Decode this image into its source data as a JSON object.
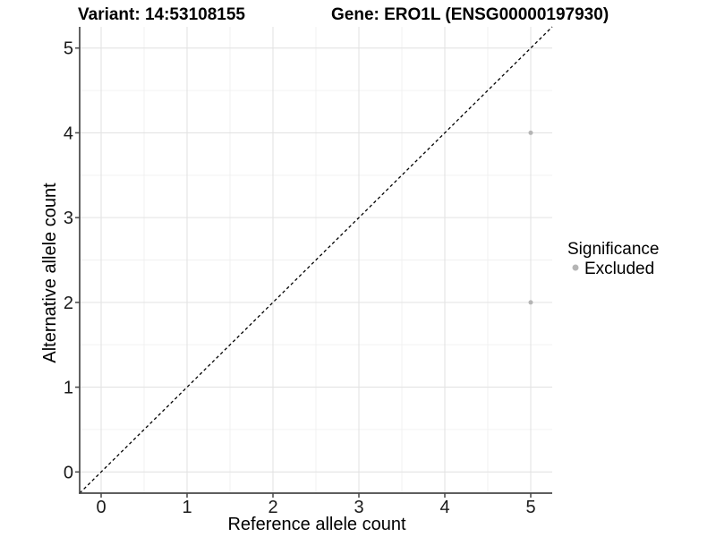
{
  "chart_data": {
    "type": "scatter",
    "titles": [
      "Variant: 14:53108155",
      "Gene: ERO1L (ENSG00000197930)"
    ],
    "xlabel": "Reference allele count",
    "ylabel": "Alternative allele count",
    "xlim": [
      -0.25,
      5.25
    ],
    "ylim": [
      -0.25,
      5.25
    ],
    "x_ticks": [
      0,
      1,
      2,
      3,
      4,
      5
    ],
    "y_ticks": [
      0,
      1,
      2,
      3,
      4,
      5
    ],
    "x_minor_ticks": [
      0.5,
      1.5,
      2.5,
      3.5,
      4.5
    ],
    "y_minor_ticks": [
      0.5,
      1.5,
      2.5,
      3.5,
      4.5
    ],
    "grid": "major+minor",
    "identity_line": {
      "from": [
        -0.25,
        -0.25
      ],
      "to": [
        5.25,
        5.25
      ],
      "style": "dashed",
      "color": "#000000"
    },
    "series": [
      {
        "name": "Excluded",
        "color": "#b5b5b5",
        "points": [
          {
            "x": 5,
            "y": 4
          },
          {
            "x": 5,
            "y": 2
          }
        ]
      }
    ],
    "legend": {
      "title": "Significance",
      "position": "right",
      "entries": [
        {
          "label": "Excluded",
          "color": "#b5b5b5"
        }
      ]
    }
  },
  "colors": {
    "background": "#ffffff",
    "grid_major": "#e3e3e3",
    "grid_minor": "#f0f0f0",
    "axis_line": "#474747",
    "tick_mark": "#474747",
    "tick_text": "#1a1a1a",
    "point": "#b5b5b5",
    "diagonal": "#000000"
  }
}
